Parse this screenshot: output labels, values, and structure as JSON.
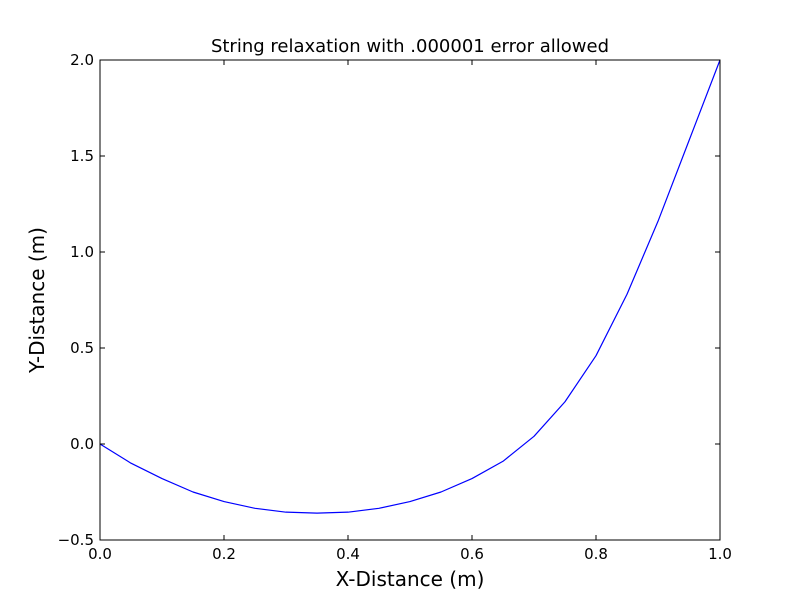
{
  "chart_data": {
    "type": "line",
    "title": "String relaxation with .000001 error allowed",
    "xlabel": "X-Distance (m)",
    "ylabel": "Y-Distance (m)",
    "xlim": [
      0.0,
      1.0
    ],
    "ylim": [
      -0.5,
      2.0
    ],
    "xticks": [
      "0.0",
      "0.2",
      "0.4",
      "0.6",
      "0.8",
      "1.0"
    ],
    "yticks": [
      "−0.5",
      "0.0",
      "0.5",
      "1.0",
      "1.5",
      "2.0"
    ],
    "grid": false,
    "series": [
      {
        "color": "#0000ff",
        "x": [
          0.0,
          0.05,
          0.1,
          0.15,
          0.2,
          0.25,
          0.3,
          0.35,
          0.4,
          0.45,
          0.5,
          0.55,
          0.6,
          0.65,
          0.7,
          0.75,
          0.8,
          0.85,
          0.9,
          0.95,
          1.0
        ],
        "y": [
          0.0,
          -0.1,
          -0.18,
          -0.25,
          -0.3,
          -0.335,
          -0.355,
          -0.36,
          -0.355,
          -0.335,
          -0.3,
          -0.25,
          -0.18,
          -0.09,
          0.04,
          0.22,
          0.46,
          0.78,
          1.16,
          1.58,
          2.0
        ]
      }
    ]
  }
}
